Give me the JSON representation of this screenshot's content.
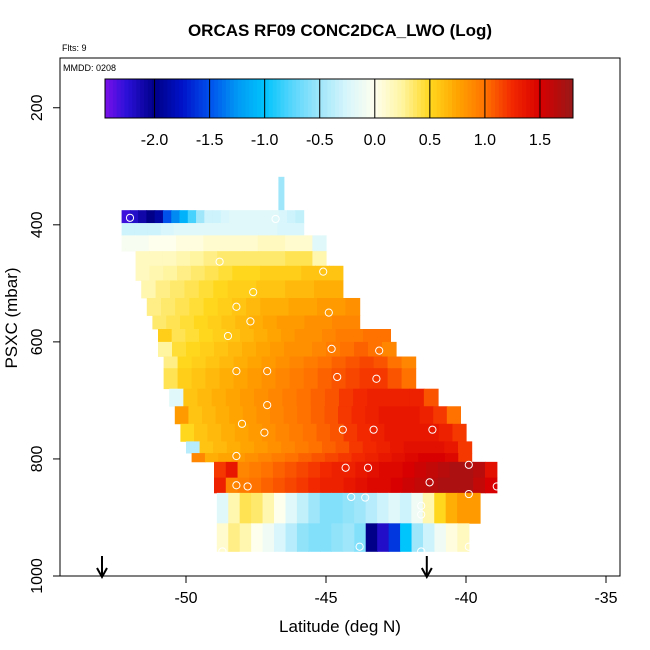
{
  "chart_data": {
    "type": "heatmap",
    "title": "ORCAS RF09 CONC2DCA_LWO (Log)",
    "flights_label": "Flts: 9",
    "date_label": "MMDD: 0208",
    "xlabel": "Latitude (deg N)",
    "ylabel": "PSXC (mbar)",
    "xlim": [
      -54.5,
      -34.5
    ],
    "ylim": [
      1000,
      115
    ],
    "x_ticks": [
      -50,
      -45,
      -40,
      -35
    ],
    "x_tick_labels": [
      "-50",
      "-45",
      "-40",
      "-35"
    ],
    "y_ticks": [
      200,
      400,
      600,
      800,
      1000
    ],
    "y_tick_labels": [
      "200",
      "400",
      "600",
      "800",
      "1000"
    ],
    "colorbar": {
      "range": [
        -2.45,
        1.8
      ],
      "ticks": [
        -2.0,
        -1.5,
        -1.0,
        -0.5,
        0.0,
        0.5,
        1.0,
        1.5
      ],
      "tick_labels": [
        "-2.0",
        "-1.5",
        "-1.0",
        "-0.5",
        "0.0",
        "0.5",
        "1.0",
        "1.5"
      ]
    },
    "arrows_lat": [
      -53.0,
      -41.4
    ],
    "bands": [
      {
        "p_top": 375,
        "p_bot": 397,
        "lat_start": -52.3,
        "lat_end": -45.8,
        "values": [
          -2.3,
          -2.2,
          -2.1,
          -2.0,
          -1.9,
          -1.5,
          -1.3,
          -1.1,
          -0.8,
          -0.5,
          -0.3,
          -0.3,
          -0.25,
          -0.2,
          -0.2,
          -0.2,
          -0.2,
          -0.2,
          -0.2,
          -0.25,
          -0.3,
          -0.35
        ]
      },
      {
        "p_top": 397,
        "p_bot": 418,
        "lat_start": -52.3,
        "lat_end": -45.8,
        "values": [
          -0.3,
          -0.3,
          -0.3,
          -0.25,
          -0.2,
          -0.2,
          -0.2,
          -0.2,
          -0.2,
          -0.2,
          -0.2,
          -0.2,
          -0.25,
          -0.25
        ]
      },
      {
        "p_top": 418,
        "p_bot": 445,
        "lat_start": -52.3,
        "lat_end": -45.0,
        "values": [
          -0.05,
          -0.05,
          0.0,
          0.0,
          0.05,
          0.05,
          0.1,
          0.1,
          0.1,
          0.1,
          0.15,
          0.15,
          0.1,
          0.1,
          -0.2
        ]
      },
      {
        "p_top": 445,
        "p_bot": 470,
        "lat_start": -51.8,
        "lat_end": -45.0,
        "values": [
          0.15,
          0.15,
          0.15,
          0.2,
          0.25,
          0.3,
          0.35,
          0.35,
          0.35,
          0.35,
          0.35,
          0.4,
          0.4,
          0.2
        ]
      },
      {
        "p_top": 470,
        "p_bot": 495,
        "lat_start": -51.8,
        "lat_end": -44.4,
        "values": [
          0.15,
          0.2,
          0.25,
          0.3,
          0.35,
          0.4,
          0.45,
          0.5,
          0.5,
          0.55,
          0.55,
          0.55,
          0.6,
          0.6,
          0.6
        ]
      },
      {
        "p_top": 495,
        "p_bot": 525,
        "lat_start": -51.6,
        "lat_end": -44.4,
        "values": [
          0.2,
          0.3,
          0.35,
          0.4,
          0.45,
          0.5,
          0.55,
          0.55,
          0.6,
          0.6,
          0.65,
          0.65,
          0.7,
          0.7
        ]
      },
      {
        "p_top": 525,
        "p_bot": 555,
        "lat_start": -51.4,
        "lat_end": -43.8,
        "values": [
          0.3,
          0.35,
          0.4,
          0.45,
          0.5,
          0.55,
          0.6,
          0.65,
          0.7,
          0.7,
          0.75,
          0.75,
          0.8,
          0.8,
          0.85
        ]
      },
      {
        "p_top": 555,
        "p_bot": 578,
        "lat_start": -51.2,
        "lat_end": -43.8,
        "values": [
          0.35,
          0.4,
          0.45,
          0.5,
          0.55,
          0.6,
          0.65,
          0.7,
          0.75,
          0.8,
          0.8,
          0.85,
          0.85,
          0.9,
          0.9
        ]
      },
      {
        "p_top": 578,
        "p_bot": 600,
        "lat_start": -51.0,
        "lat_end": -42.7,
        "values": [
          0.55,
          0.4,
          0.45,
          0.5,
          0.55,
          0.6,
          0.65,
          0.7,
          0.75,
          0.8,
          0.85,
          0.85,
          0.9,
          0.95,
          0.95,
          1.0,
          1.0
        ]
      },
      {
        "p_top": 600,
        "p_bot": 625,
        "lat_start": -51.0,
        "lat_end": -42.5,
        "values": [
          0.25,
          0.45,
          0.5,
          0.55,
          0.6,
          0.65,
          0.7,
          0.75,
          0.8,
          0.85,
          0.85,
          0.9,
          0.95,
          1.0,
          1.05,
          1.0,
          0.9
        ]
      },
      {
        "p_top": 625,
        "p_bot": 645,
        "lat_start": -50.8,
        "lat_end": -41.8,
        "values": [
          0.3,
          0.5,
          0.55,
          0.6,
          0.65,
          0.7,
          0.75,
          0.8,
          0.85,
          0.9,
          0.95,
          1.0,
          1.05,
          1.1,
          1.15,
          1.1,
          1.0,
          0.9
        ]
      },
      {
        "p_top": 645,
        "p_bot": 680,
        "lat_start": -50.8,
        "lat_end": -41.8,
        "values": [
          0.4,
          0.55,
          0.6,
          0.65,
          0.7,
          0.75,
          0.8,
          0.85,
          0.9,
          0.95,
          1.0,
          1.05,
          1.1,
          1.15,
          1.2,
          1.2,
          1.1,
          1.0
        ]
      },
      {
        "p_top": 680,
        "p_bot": 710,
        "lat_start": -50.6,
        "lat_end": -41.0,
        "values": [
          -0.2,
          0.6,
          0.65,
          0.7,
          0.75,
          0.8,
          0.85,
          0.9,
          0.95,
          1.0,
          1.05,
          1.1,
          1.2,
          1.25,
          1.3,
          1.3,
          1.3,
          1.3,
          1.1
        ]
      },
      {
        "p_top": 710,
        "p_bot": 740,
        "lat_start": -50.4,
        "lat_end": -40.2,
        "values": [
          0.8,
          0.6,
          0.65,
          0.7,
          0.75,
          0.8,
          0.85,
          0.9,
          0.95,
          1.0,
          1.05,
          1.1,
          1.2,
          1.25,
          1.3,
          1.35,
          1.35,
          1.35,
          1.3,
          1.2,
          1.0
        ]
      },
      {
        "p_top": 740,
        "p_bot": 770,
        "lat_start": -50.2,
        "lat_end": -40.0,
        "values": [
          0.5,
          0.6,
          0.65,
          0.7,
          0.75,
          0.8,
          0.85,
          0.9,
          0.95,
          1.0,
          1.05,
          1.1,
          1.2,
          1.25,
          1.3,
          1.35,
          1.35,
          1.35,
          1.35,
          1.3,
          1.2
        ]
      },
      {
        "p_top": 770,
        "p_bot": 790,
        "lat_start": -50.0,
        "lat_end": -39.8,
        "values": [
          -0.4,
          0.6,
          0.65,
          0.7,
          0.75,
          0.8,
          0.85,
          0.9,
          0.95,
          1.0,
          1.05,
          1.1,
          1.2,
          1.25,
          1.3,
          1.35,
          1.4,
          1.4,
          1.4,
          1.35,
          1.2
        ]
      },
      {
        "p_top": 790,
        "p_bot": 805,
        "lat_start": -49.8,
        "lat_end": -39.8,
        "values": [
          0.9,
          0.7,
          0.75,
          0.8,
          0.85,
          0.9,
          0.95,
          1.0,
          1.05,
          1.1,
          1.15,
          1.2,
          1.25,
          1.3,
          1.35,
          1.4,
          1.45,
          1.5,
          1.5,
          1.45,
          1.2
        ]
      },
      {
        "p_top": 805,
        "p_bot": 832,
        "lat_start": -49.0,
        "lat_end": -38.9,
        "values": [
          1.2,
          1.35,
          0.9,
          0.95,
          1.0,
          1.05,
          1.1,
          1.15,
          1.2,
          1.25,
          1.3,
          1.3,
          1.35,
          1.4,
          1.45,
          1.45,
          1.5,
          1.55,
          1.6,
          1.65,
          1.7,
          1.7,
          1.65,
          1.4
        ]
      },
      {
        "p_top": 832,
        "p_bot": 858,
        "lat_start": -49.0,
        "lat_end": -38.9,
        "values": [
          1.3,
          0.9,
          0.95,
          1.0,
          1.05,
          1.1,
          1.15,
          1.2,
          1.25,
          1.3,
          1.3,
          1.35,
          1.4,
          1.45,
          1.45,
          1.5,
          1.55,
          1.6,
          1.65,
          1.7,
          1.7,
          1.7,
          1.6,
          1.5
        ]
      },
      {
        "p_top": 858,
        "p_bot": 910,
        "lat_start": -48.9,
        "lat_end": -39.5,
        "values": [
          -0.2,
          0.2,
          0.4,
          0.35,
          0.2,
          0.0,
          -0.2,
          -0.35,
          -0.5,
          -0.6,
          -0.6,
          -0.55,
          -0.5,
          -0.4,
          -0.3,
          -0.2,
          -0.3,
          -0.1,
          0.2,
          0.5,
          0.7,
          0.8,
          0.8
        ]
      },
      {
        "p_top": 910,
        "p_bot": 958,
        "lat_start": -48.9,
        "lat_end": -39.9,
        "values": [
          0.1,
          0.3,
          0.2,
          0.0,
          -0.1,
          -0.25,
          -0.4,
          -0.55,
          -0.6,
          -0.6,
          -0.55,
          -0.5,
          -0.6,
          -2.0,
          -2.2,
          -1.6,
          -1.0,
          -0.5,
          -0.3,
          -0.1,
          0.05,
          0.15
        ]
      }
    ],
    "points": [
      {
        "lat": -52.0,
        "p": 388
      },
      {
        "lat": -46.8,
        "p": 390
      },
      {
        "lat": -48.8,
        "p": 463
      },
      {
        "lat": -45.1,
        "p": 480
      },
      {
        "lat": -47.6,
        "p": 515
      },
      {
        "lat": -48.2,
        "p": 540
      },
      {
        "lat": -44.9,
        "p": 550
      },
      {
        "lat": -47.7,
        "p": 565
      },
      {
        "lat": -48.5,
        "p": 590
      },
      {
        "lat": -44.8,
        "p": 612
      },
      {
        "lat": -43.1,
        "p": 615
      },
      {
        "lat": -48.2,
        "p": 650
      },
      {
        "lat": -47.1,
        "p": 650
      },
      {
        "lat": -44.6,
        "p": 660
      },
      {
        "lat": -43.2,
        "p": 663
      },
      {
        "lat": -47.1,
        "p": 708
      },
      {
        "lat": -48.0,
        "p": 740
      },
      {
        "lat": -47.2,
        "p": 755
      },
      {
        "lat": -44.4,
        "p": 750
      },
      {
        "lat": -43.3,
        "p": 750
      },
      {
        "lat": -41.2,
        "p": 750
      },
      {
        "lat": -48.2,
        "p": 795
      },
      {
        "lat": -44.3,
        "p": 815
      },
      {
        "lat": -43.5,
        "p": 815
      },
      {
        "lat": -41.3,
        "p": 840
      },
      {
        "lat": -39.9,
        "p": 810
      },
      {
        "lat": -48.2,
        "p": 845
      },
      {
        "lat": -47.8,
        "p": 847
      },
      {
        "lat": -44.1,
        "p": 865
      },
      {
        "lat": -43.6,
        "p": 866
      },
      {
        "lat": -41.6,
        "p": 880
      },
      {
        "lat": -39.9,
        "p": 860
      },
      {
        "lat": -38.9,
        "p": 847
      },
      {
        "lat": -41.6,
        "p": 895
      },
      {
        "lat": -43.8,
        "p": 950
      },
      {
        "lat": -41.6,
        "p": 958
      },
      {
        "lat": -39.9,
        "p": 950
      },
      {
        "lat": -48.7,
        "p": 958
      }
    ]
  }
}
